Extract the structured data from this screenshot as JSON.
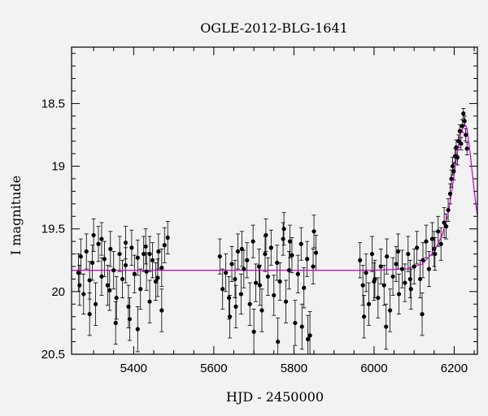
{
  "chart_data": {
    "type": "scatter",
    "title": "OGLE-2012-BLG-1641",
    "xlabel": "HJD - 2450000",
    "ylabel": "I magnitude",
    "xlim": [
      5245,
      6258
    ],
    "ylim": [
      20.5,
      18.05
    ],
    "y_inverted": true,
    "x_ticks": [
      5400,
      5600,
      5800,
      6000,
      6200
    ],
    "x_tick_labels": [
      "5400",
      "5600",
      "5800",
      "6000",
      "6200"
    ],
    "y_ticks": [
      18.5,
      19,
      19.5,
      20,
      20.5
    ],
    "y_tick_labels": [
      "18.5",
      "19",
      "19.5",
      "20",
      "20.5"
    ],
    "grid": false,
    "legend": "none",
    "colors": {
      "points": "#000000",
      "model": "#cc00cc",
      "background": "#f2f2f2"
    },
    "series": [
      {
        "kind": "points_with_errorbars",
        "x": [
          5262,
          5268,
          5275,
          5282,
          5290,
          5297,
          5305,
          5312,
          5320,
          5327,
          5335,
          5342,
          5350,
          5357,
          5365,
          5372,
          5380,
          5387,
          5395,
          5402,
          5410,
          5417,
          5425,
          5432,
          5440,
          5447,
          5455,
          5462,
          5470,
          5477,
          5485,
          5265,
          5290,
          5320,
          5355,
          5380,
          5410,
          5440,
          5470,
          5300,
          5340,
          5390,
          5430,
          5460,
          5615,
          5622,
          5630,
          5638,
          5645,
          5653,
          5660,
          5668,
          5675,
          5683,
          5690,
          5698,
          5705,
          5713,
          5720,
          5728,
          5735,
          5743,
          5750,
          5758,
          5765,
          5773,
          5780,
          5788,
          5795,
          5803,
          5810,
          5818,
          5825,
          5833,
          5840,
          5848,
          5855,
          5640,
          5670,
          5700,
          5730,
          5760,
          5790,
          5820,
          5850,
          5655,
          5715,
          5775,
          5835,
          5965,
          5972,
          5980,
          5987,
          5995,
          6002,
          6010,
          6017,
          6025,
          6032,
          6040,
          6047,
          6055,
          6062,
          6070,
          6077,
          6085,
          6092,
          6100,
          6107,
          6115,
          6122,
          6130,
          6137,
          6145,
          6152,
          6160,
          6167,
          6175,
          5975,
          6000,
          6030,
          6060,
          6090,
          6120,
          6150,
          6180,
          6185,
          6190,
          6193,
          6196,
          6199,
          6202,
          6205,
          6208,
          6211,
          6214,
          6217,
          6220,
          6223,
          6226,
          6229,
          6232
        ],
        "y": [
          19.85,
          19.72,
          20.02,
          19.68,
          19.91,
          19.77,
          20.1,
          19.62,
          19.88,
          19.74,
          19.95,
          19.66,
          19.83,
          20.05,
          19.7,
          19.9,
          19.79,
          20.12,
          19.65,
          19.86,
          19.73,
          19.98,
          19.7,
          19.84,
          20.08,
          19.75,
          19.92,
          19.68,
          19.81,
          19.63,
          19.57,
          19.95,
          20.18,
          19.58,
          20.25,
          19.61,
          20.3,
          19.7,
          20.15,
          19.55,
          19.99,
          20.22,
          19.64,
          19.89,
          19.72,
          19.98,
          19.85,
          20.05,
          19.78,
          19.9,
          19.68,
          20.02,
          19.82,
          19.75,
          20.1,
          19.6,
          19.93,
          19.8,
          20.15,
          19.7,
          19.88,
          19.65,
          20.03,
          19.77,
          19.92,
          19.58,
          20.08,
          19.83,
          19.71,
          20.25,
          19.86,
          19.62,
          19.97,
          19.74,
          20.35,
          19.8,
          19.69,
          20.2,
          19.66,
          20.32,
          19.55,
          20.4,
          19.6,
          20.28,
          19.52,
          20.12,
          19.95,
          19.5,
          20.38,
          19.75,
          19.95,
          19.85,
          20.1,
          19.7,
          19.9,
          20.05,
          19.8,
          19.95,
          19.72,
          20.15,
          19.88,
          19.78,
          20.02,
          19.82,
          19.93,
          19.7,
          19.98,
          19.8,
          19.65,
          19.9,
          19.75,
          19.6,
          19.82,
          19.58,
          19.7,
          19.52,
          19.62,
          19.45,
          20.2,
          19.92,
          20.28,
          19.68,
          19.9,
          20.18,
          19.66,
          19.48,
          19.35,
          19.22,
          19.1,
          19.0,
          19.04,
          18.92,
          18.85,
          18.93,
          18.8,
          18.72,
          18.82,
          18.68,
          18.58,
          18.64,
          18.75,
          18.86
        ],
        "yerr": [
          0.15,
          0.14,
          0.16,
          0.14,
          0.15,
          0.14,
          0.17,
          0.14,
          0.15,
          0.14,
          0.16,
          0.14,
          0.15,
          0.17,
          0.14,
          0.15,
          0.14,
          0.17,
          0.14,
          0.15,
          0.14,
          0.16,
          0.14,
          0.15,
          0.17,
          0.14,
          0.15,
          0.14,
          0.15,
          0.14,
          0.13,
          0.16,
          0.17,
          0.13,
          0.17,
          0.13,
          0.18,
          0.14,
          0.17,
          0.13,
          0.16,
          0.17,
          0.14,
          0.15,
          0.14,
          0.16,
          0.15,
          0.17,
          0.14,
          0.15,
          0.14,
          0.16,
          0.15,
          0.14,
          0.17,
          0.13,
          0.15,
          0.14,
          0.17,
          0.14,
          0.15,
          0.14,
          0.16,
          0.14,
          0.15,
          0.13,
          0.17,
          0.15,
          0.14,
          0.18,
          0.15,
          0.13,
          0.16,
          0.14,
          0.19,
          0.14,
          0.14,
          0.17,
          0.14,
          0.18,
          0.13,
          0.19,
          0.13,
          0.18,
          0.13,
          0.17,
          0.16,
          0.13,
          0.19,
          0.14,
          0.16,
          0.15,
          0.17,
          0.14,
          0.15,
          0.16,
          0.14,
          0.16,
          0.14,
          0.17,
          0.15,
          0.14,
          0.16,
          0.15,
          0.15,
          0.14,
          0.16,
          0.14,
          0.13,
          0.15,
          0.14,
          0.13,
          0.14,
          0.13,
          0.13,
          0.12,
          0.13,
          0.12,
          0.17,
          0.15,
          0.18,
          0.14,
          0.15,
          0.17,
          0.14,
          0.1,
          0.09,
          0.08,
          0.07,
          0.07,
          0.07,
          0.06,
          0.06,
          0.06,
          0.05,
          0.05,
          0.05,
          0.05,
          0.04,
          0.04,
          0.05,
          0.05
        ]
      },
      {
        "kind": "model_curve",
        "x": [
          5245,
          6000,
          6080,
          6120,
          6150,
          6170,
          6185,
          6195,
          6205,
          6215,
          6225,
          6232,
          6240,
          6250,
          6258
        ],
        "y": [
          19.83,
          19.83,
          19.82,
          19.78,
          19.68,
          19.55,
          19.38,
          19.18,
          18.95,
          18.75,
          18.66,
          18.7,
          18.9,
          19.2,
          19.4
        ]
      }
    ]
  }
}
